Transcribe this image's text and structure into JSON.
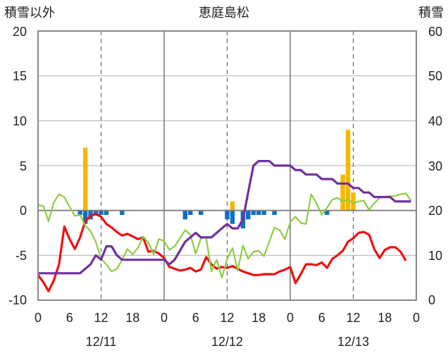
{
  "chart_data": {
    "type": "line",
    "title": "恵庭島松",
    "ylabel_left": "積雪以外",
    "ylabel_right": "積雪",
    "ylim_left": [
      -10,
      20
    ],
    "ylim_right": [
      0,
      60
    ],
    "yticks_left": [
      "20",
      "15",
      "10",
      "5",
      "0",
      "-5",
      "-10"
    ],
    "yticks_right": [
      "60",
      "50",
      "40",
      "30",
      "20",
      "10",
      "0"
    ],
    "x_range": [
      0,
      72
    ],
    "xticks_hours": [
      0,
      6,
      12,
      18,
      24,
      30,
      36,
      42,
      48,
      54,
      60,
      66,
      72
    ],
    "xtick_labels": [
      "0",
      "6",
      "12",
      "18",
      "0",
      "6",
      "12",
      "18",
      "0",
      "6",
      "12",
      "18",
      "0"
    ],
    "date_labels": [
      {
        "hour": 12,
        "label": "12/11"
      },
      {
        "hour": 36,
        "label": "12/12"
      },
      {
        "hour": 60,
        "label": "12/13"
      }
    ],
    "colors": {
      "temperature": "#ee1111",
      "green": "#8dcc44",
      "snow_depth": "#7030a0",
      "precipitation": "#f5b800",
      "snow_diff": "#0f6fc6"
    },
    "series": [
      {
        "key": "temperature",
        "axis": "left",
        "x": [
          0,
          1,
          2,
          3,
          4,
          5,
          6,
          7,
          8,
          9,
          10,
          11,
          12,
          13,
          14,
          15,
          16,
          17,
          18,
          19,
          20,
          21,
          22,
          23,
          24,
          25,
          26,
          27,
          28,
          29,
          30,
          31,
          32,
          33,
          34,
          35,
          36,
          37,
          38,
          39,
          40,
          41,
          42,
          43,
          44,
          45,
          46,
          47,
          48,
          49,
          50,
          51,
          52,
          53,
          54,
          55,
          56,
          57,
          58,
          59,
          60,
          61,
          62,
          63,
          64,
          65,
          66,
          67,
          68,
          69,
          70,
          71
        ],
        "values": [
          -7.2,
          -8,
          -9,
          -7.8,
          -6,
          -1.8,
          -3.2,
          -4.3,
          -3,
          -1.2,
          -0.6,
          -0.4,
          -0.7,
          -1.5,
          -1.9,
          -2.4,
          -2.8,
          -2.6,
          -2.9,
          -3.2,
          -3,
          -4.6,
          -4.5,
          -4.8,
          -5.3,
          -6.3,
          -6.5,
          -6.7,
          -6.6,
          -6.4,
          -6.8,
          -6.6,
          -5.2,
          -6,
          -6.5,
          -6.3,
          -6.4,
          -6.2,
          -6.5,
          -6.8,
          -7,
          -7.2,
          -7.2,
          -7.1,
          -7.1,
          -7.1,
          -6.8,
          -6.6,
          -6.3,
          -8.1,
          -7.1,
          -6,
          -6,
          -6.1,
          -5.8,
          -6.4,
          -5.4,
          -5,
          -4.5,
          -3.5,
          -3.1,
          -2.5,
          -2.4,
          -2.7,
          -4.3,
          -5.3,
          -4.4,
          -4.1,
          -4.1,
          -4.6,
          -5.6,
          null
        ]
      },
      {
        "key": "green",
        "axis": "left",
        "x": [
          0,
          1,
          2,
          3,
          4,
          5,
          6,
          7,
          8,
          9,
          10,
          11,
          12,
          13,
          14,
          15,
          16,
          17,
          18,
          19,
          20,
          21,
          22,
          23,
          24,
          25,
          26,
          27,
          28,
          29,
          30,
          31,
          32,
          33,
          34,
          35,
          36,
          37,
          38,
          39,
          40,
          41,
          42,
          43,
          44,
          45,
          46,
          47,
          48,
          49,
          50,
          51,
          52,
          53,
          54,
          55,
          56,
          57,
          58,
          59,
          60,
          61,
          62,
          63,
          64,
          65,
          66,
          67,
          68,
          69,
          70,
          71
        ],
        "values": [
          0.6,
          0.5,
          -1.2,
          0.9,
          1.8,
          1.5,
          0.4,
          -0.6,
          -0.5,
          -1.7,
          -2.3,
          -3.5,
          -5.4,
          -6,
          -6.8,
          -6.5,
          -5.5,
          -4.3,
          -4.9,
          -4.2,
          -2.9,
          -3.6,
          -4.9,
          -3.2,
          -3.4,
          -4.4,
          -4,
          -3.1,
          -2.2,
          -2.7,
          -4.8,
          -3.1,
          -3,
          -6.8,
          -5.5,
          -7.5,
          -5.4,
          -4.2,
          -6.7,
          -3.9,
          -5.4,
          -4.6,
          -4.5,
          -5.1,
          -3.5,
          -1.9,
          -2.2,
          -3.2,
          -1.3,
          -0.7,
          -1.4,
          -1.5,
          1.8,
          0.8,
          -0.5,
          0.3,
          1.2,
          1.4,
          1,
          1.2,
          0.8,
          1,
          1.1,
          0.1,
          0.8,
          1.4,
          1.5,
          1.6,
          1.6,
          1.8,
          1.9,
          1.1
        ]
      },
      {
        "key": "snow_depth",
        "axis": "right",
        "x": [
          0,
          1,
          2,
          3,
          4,
          5,
          6,
          7,
          8,
          9,
          10,
          11,
          12,
          13,
          14,
          15,
          16,
          17,
          18,
          19,
          20,
          21,
          22,
          23,
          24,
          25,
          26,
          27,
          28,
          29,
          30,
          31,
          32,
          33,
          34,
          35,
          36,
          37,
          38,
          39,
          40,
          41,
          42,
          43,
          44,
          45,
          46,
          47,
          48,
          49,
          50,
          51,
          52,
          53,
          54,
          55,
          56,
          57,
          58,
          59,
          60,
          61,
          62,
          63,
          64,
          65,
          66,
          67,
          68,
          69,
          70,
          71
        ],
        "values": [
          6,
          6,
          6,
          6,
          6,
          6,
          6,
          6,
          6,
          7,
          8,
          10,
          9,
          12,
          12,
          10,
          9,
          9,
          9,
          9,
          9,
          9,
          9,
          9,
          9,
          8,
          9,
          11,
          13,
          14,
          15,
          14,
          14,
          14,
          15,
          16,
          17,
          16,
          16,
          18,
          24,
          30,
          31,
          31,
          31,
          30,
          30,
          30,
          30,
          29,
          29,
          28,
          28,
          28,
          27,
          27,
          27,
          26,
          26,
          26,
          25,
          25,
          24,
          24,
          23,
          23,
          23,
          23,
          22,
          22,
          22,
          22
        ]
      }
    ],
    "bars": [
      {
        "key": "precipitation",
        "axis": "left",
        "x": [
          9,
          37,
          58,
          59,
          60
        ],
        "values": [
          7.0,
          1.0,
          4.0,
          9.0,
          2.0
        ]
      },
      {
        "key": "snow_diff",
        "axis": "left",
        "x": [
          8,
          9,
          10,
          11,
          12,
          13,
          16,
          28,
          29,
          31,
          36,
          37,
          39,
          40,
          41,
          42,
          43,
          45,
          55
        ],
        "values": [
          -0.5,
          -1.5,
          -1,
          -0.5,
          -0.5,
          -0.5,
          -0.5,
          -1,
          -0.5,
          -0.5,
          -1,
          -1.5,
          -2,
          -1,
          -0.5,
          -0.5,
          -0.5,
          -0.5,
          -0.5
        ]
      }
    ]
  }
}
